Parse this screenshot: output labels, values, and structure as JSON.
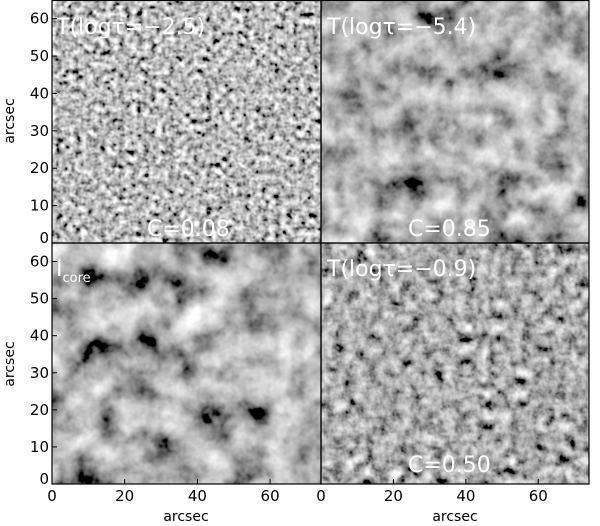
{
  "chart_data": [
    {
      "type": "heatmap",
      "panel": "top-left",
      "title": "T(logτ=−2.5)",
      "contrast": "C=0.08",
      "xlabel": "",
      "ylabel": "arcsec",
      "xlim": [
        0,
        74
      ],
      "ylim": [
        0,
        65
      ],
      "yticks": [
        "0",
        "10",
        "20",
        "30",
        "40",
        "50",
        "60"
      ],
      "xticks": []
    },
    {
      "type": "heatmap",
      "panel": "top-right",
      "title": "T(logτ=−5.4)",
      "contrast": "C=0.85",
      "xlabel": "",
      "ylabel": "",
      "xlim": [
        0,
        74
      ],
      "ylim": [
        0,
        65
      ],
      "yticks": [],
      "xticks": []
    },
    {
      "type": "heatmap",
      "panel": "bottom-left",
      "title": "I",
      "title_subscript": "core",
      "contrast": "",
      "xlabel": "arcsec",
      "ylabel": "arcsec",
      "xlim": [
        0,
        74
      ],
      "ylim": [
        0,
        65
      ],
      "yticks": [
        "0",
        "10",
        "20",
        "30",
        "40",
        "50",
        "60"
      ],
      "xticks": [
        "0",
        "20",
        "40",
        "60"
      ]
    },
    {
      "type": "heatmap",
      "panel": "bottom-right",
      "title": "T(logτ=−0.9)",
      "contrast": "C=0.50",
      "xlabel": "arcsec",
      "ylabel": "",
      "xlim": [
        0,
        74
      ],
      "ylim": [
        0,
        65
      ],
      "yticks": [],
      "xticks": [
        "0",
        "20",
        "40",
        "60"
      ]
    }
  ]
}
